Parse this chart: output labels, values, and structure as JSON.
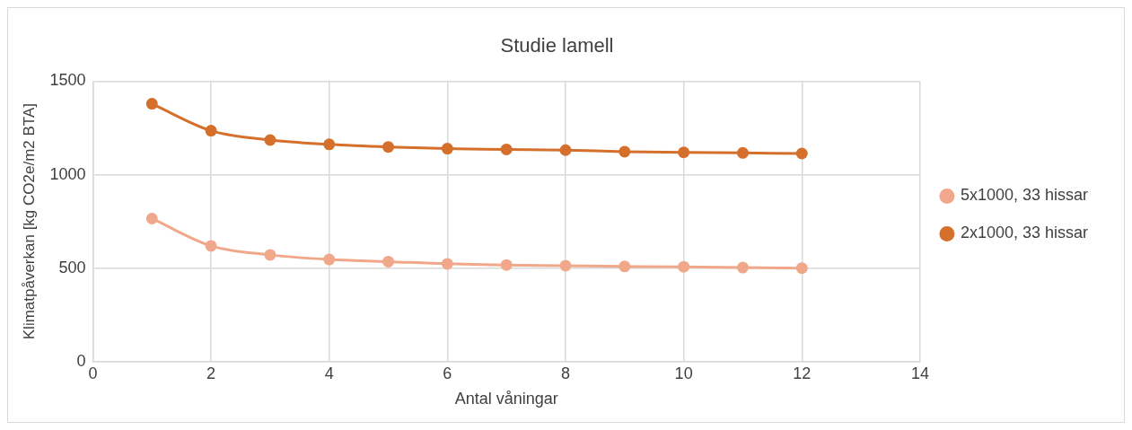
{
  "chart_data": {
    "type": "line",
    "title": "Studie lamell",
    "xlabel": "Antal våningar",
    "ylabel": "Klimatpåverkan [kg CO2e/m2 BTA]",
    "x": [
      1,
      2,
      3,
      4,
      5,
      6,
      7,
      8,
      9,
      10,
      11,
      12
    ],
    "series": [
      {
        "name": "5x1000, 33 hissar",
        "color": "#f1a88a",
        "values": [
          765,
          619,
          571,
          546,
          535,
          523,
          517,
          513,
          509,
          507,
          503,
          500
        ]
      },
      {
        "name": "2x1000, 33 hissar",
        "color": "#d5702c",
        "values": [
          1379,
          1235,
          1185,
          1162,
          1148,
          1139,
          1135,
          1131,
          1123,
          1119,
          1116,
          1113
        ]
      }
    ],
    "xlim": [
      0,
      14
    ],
    "xticks": [
      0,
      2,
      4,
      6,
      8,
      10,
      12,
      14
    ],
    "ylim": [
      0,
      1500
    ],
    "yticks": [
      0,
      500,
      1000,
      1500
    ],
    "grid": true,
    "legend": "right",
    "marker": "circle",
    "line_style": "solid"
  }
}
